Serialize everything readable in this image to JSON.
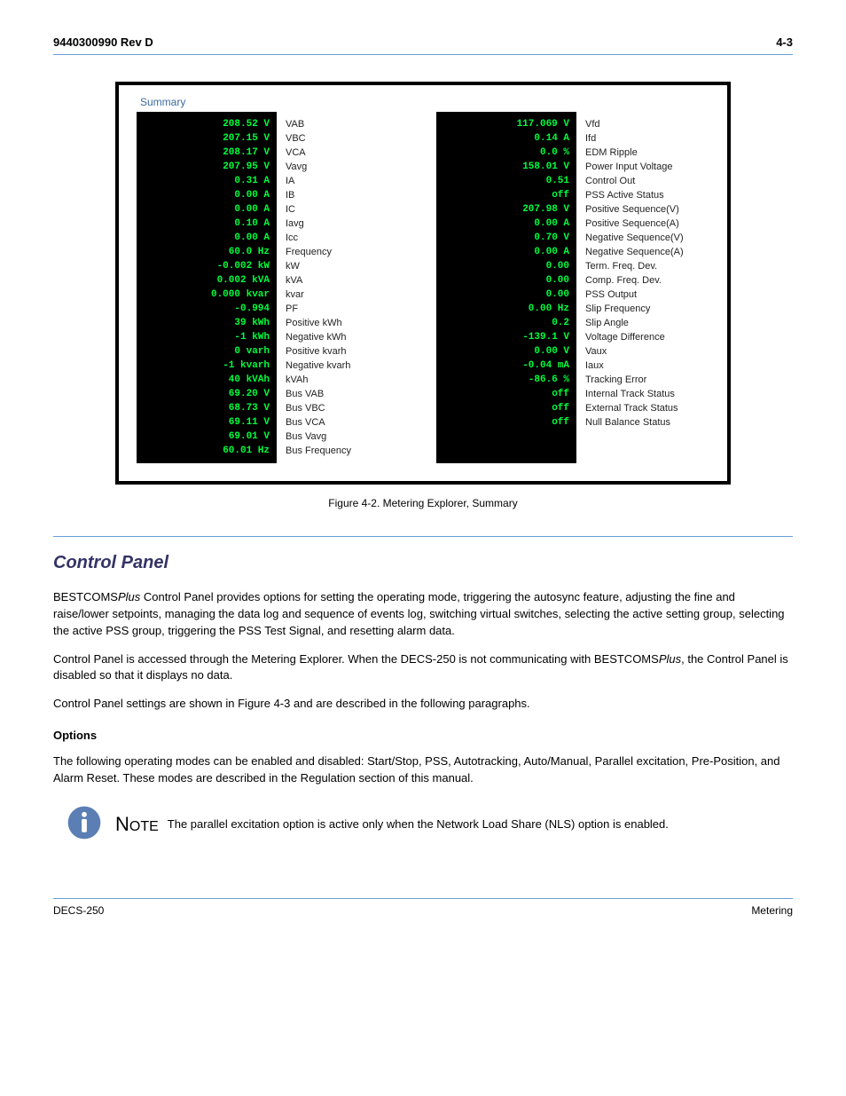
{
  "header": {
    "left": "9440300990 Rev D",
    "right": "4-3"
  },
  "summary_label": "Summary",
  "left_panel": {
    "values": [
      "208.52 V",
      "207.15 V",
      "208.17 V",
      "207.95 V",
      "0.31 A",
      "0.00 A",
      "0.00 A",
      "0.10 A",
      "0.00 A",
      "60.0 Hz",
      "-0.002 kW",
      "0.002 kVA",
      "0.000 kvar",
      "-0.994",
      "39 kWh",
      "-1 kWh",
      "0 varh",
      "-1 kvarh",
      "40 kVAh",
      "69.20 V",
      "68.73 V",
      "69.11 V",
      "69.01 V",
      "60.01 Hz"
    ],
    "labels": [
      "VAB",
      "VBC",
      "VCA",
      "Vavg",
      "IA",
      "IB",
      "IC",
      "Iavg",
      "Icc",
      "Frequency",
      "kW",
      "kVA",
      "kvar",
      "PF",
      "Positive kWh",
      "Negative kWh",
      "Positive kvarh",
      "Negative kvarh",
      "kVAh",
      "Bus VAB",
      "Bus VBC",
      "Bus VCA",
      "Bus Vavg",
      "Bus Frequency"
    ]
  },
  "right_panel": {
    "values": [
      "117.069 V",
      "0.14 A",
      "0.0 %",
      "158.01 V",
      "0.51",
      "off",
      "207.98 V",
      "0.00 A",
      "0.70 V",
      "0.00 A",
      "0.00",
      "0.00",
      "0.00",
      "0.00 Hz",
      "0.2",
      "-139.1 V",
      "0.00 V",
      "-0.04 mA",
      "-86.6 %",
      "off",
      "off",
      "off"
    ],
    "labels": [
      "Vfd",
      "Ifd",
      "EDM Ripple",
      "Power Input Voltage",
      "Control Out",
      "PSS Active Status",
      "Positive Sequence(V)",
      "Positive Sequence(A)",
      "Negative Sequence(V)",
      "Negative Sequence(A)",
      "Term. Freq. Dev.",
      "Comp. Freq. Dev.",
      "PSS Output",
      "Slip Frequency",
      "Slip Angle",
      "Voltage Difference",
      "Vaux",
      "Iaux",
      "Tracking Error",
      "Internal Track Status",
      "External Track Status",
      "Null Balance Status"
    ]
  },
  "figure_caption": "Figure 4-2. Metering Explorer, Summary",
  "section_title": "Control Panel",
  "body1": "BESTCOMS",
  "body1_italic": "Plus ",
  "body1_rest": "Control Panel provides options for setting the operating mode, triggering the autosync feature, adjusting the fine and raise/lower setpoints, managing the data log and sequence of events log, switching virtual switches, selecting the active setting group, selecting the active PSS group, triggering the PSS Test Signal, and resetting alarm data.",
  "body2": "Control Panel is accessed through the Metering Explorer. When the DECS-250 is not communicating with BESTCOMS",
  "body2_italic": "Plus",
  "body2_rest": ", the Control Panel is disabled so that it displays no data.",
  "body3": "Control Panel settings are shown in Figure 4-3 and are described in the following paragraphs.",
  "subsection_title": "Options",
  "body4": "The following operating modes can be enabled and disabled: Start/Stop, PSS, Autotracking, Auto/Manual, Parallel excitation, Pre-Position, and Alarm Reset. These modes are described in the Regulation section of this manual.",
  "note_label_a": "N",
  "note_label_b": "OTE",
  "note_text": "The parallel excitation option is active only when the Network Load Share (NLS) option is enabled.",
  "footer": {
    "left": "DECS-250",
    "right": "Metering"
  }
}
